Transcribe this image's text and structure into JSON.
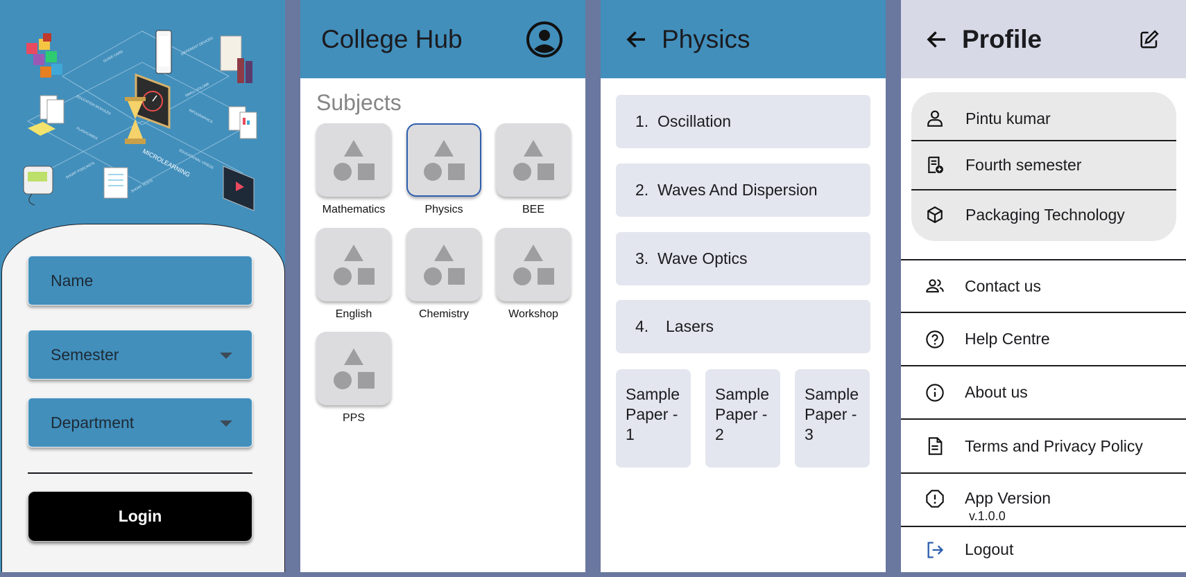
{
  "login": {
    "name_placeholder": "Name",
    "semester_placeholder": "Semester",
    "department_placeholder": "Department",
    "login_label": "Login",
    "illustration": {
      "center_text": "MICROLEARNING",
      "labels": [
        "DIFFERENT DEVICES",
        "SMALL VOLUME",
        "INFOGRAPHICS",
        "EDUCATIONAL VIDEOS",
        "SHORT TESTS",
        "SHORT PODCASTS",
        "FLASHCARDS",
        "EDUCATION MODULES",
        "GUIDE CARD"
      ]
    }
  },
  "hub": {
    "app_title": "College Hub",
    "section_title": "Subjects",
    "subjects": [
      {
        "label": "Mathematics",
        "selected": false
      },
      {
        "label": "Physics",
        "selected": true
      },
      {
        "label": "BEE",
        "selected": false
      },
      {
        "label": "English",
        "selected": false
      },
      {
        "label": "Chemistry",
        "selected": false
      },
      {
        "label": "Workshop",
        "selected": false
      },
      {
        "label": "PPS",
        "selected": false
      }
    ],
    "profile_icon": "account-circle-icon"
  },
  "physics": {
    "title": "Physics",
    "topics": [
      {
        "num": "1.",
        "name": "Oscillation"
      },
      {
        "num": "2.",
        "name": "Waves And Dispersion"
      },
      {
        "num": "3.",
        "name": "Wave Optics"
      },
      {
        "num": "4.",
        "name": "Lasers"
      }
    ],
    "papers": [
      "Sample Paper - 1",
      "Sample Paper - 2",
      "Sample Paper - 3"
    ]
  },
  "profile": {
    "title": "Profile",
    "user_name": "Pintu kumar",
    "semester": "Fourth semester",
    "department": "Packaging Technology",
    "menu": [
      {
        "label": "Contact us",
        "icon": "people-icon"
      },
      {
        "label": "Help Centre",
        "icon": "help-icon"
      },
      {
        "label": "About us",
        "icon": "info-icon"
      },
      {
        "label": "Terms and Privacy Policy",
        "icon": "document-icon"
      },
      {
        "label": "App Version",
        "icon": "alert-icon"
      },
      {
        "label": "Logout",
        "icon": "logout-icon"
      }
    ],
    "app_version": "v.1.0.0"
  },
  "colors": {
    "primary": "#428fbc",
    "background": "#6a779e",
    "tile": "#dcdcde",
    "topic": "#e3e6ee",
    "selected_border": "#2e5fae"
  }
}
